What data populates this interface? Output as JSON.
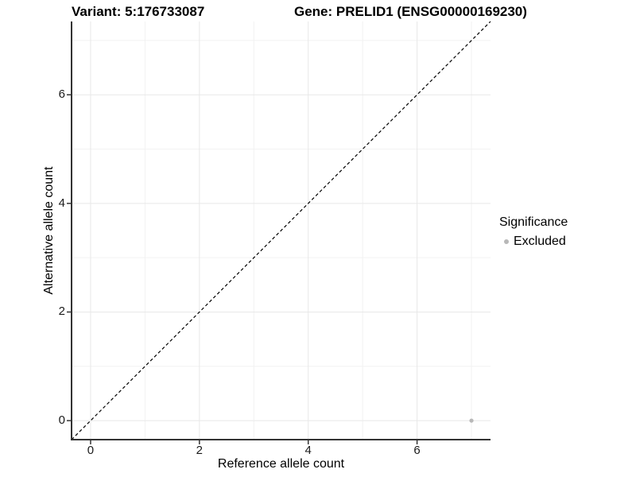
{
  "chart_data": {
    "type": "scatter",
    "title_variant": "Variant: 5:176733087",
    "title_gene": "Gene: PRELID1 (ENSG00000169230)",
    "xlabel": "Reference allele count",
    "ylabel": "Alternative allele count",
    "xlim": [
      -0.35,
      7.35
    ],
    "ylim": [
      -0.35,
      7.35
    ],
    "x_major_ticks": [
      0,
      2,
      4,
      6
    ],
    "y_major_ticks": [
      0,
      2,
      4,
      6
    ],
    "x_minor_ticks": [
      1,
      3,
      5,
      7
    ],
    "y_minor_ticks": [
      1,
      3,
      5,
      7
    ],
    "grid": true,
    "reference_line": {
      "equation": "y = x",
      "style": "dashed",
      "color": "#000000"
    },
    "series": [
      {
        "name": "Excluded",
        "color": "#b8b8b8",
        "points": [
          {
            "x": 7,
            "y": 0
          }
        ]
      }
    ],
    "legend": {
      "title": "Significance",
      "position": "right",
      "items": [
        {
          "label": "Excluded",
          "color": "#b8b8b8"
        }
      ]
    },
    "colors": {
      "background": "#ffffff",
      "axis_line": "#333333",
      "tick": "#333333",
      "grid_major": "#e8e8e8",
      "grid_minor": "#f2f2f2",
      "text": "#000000"
    }
  }
}
